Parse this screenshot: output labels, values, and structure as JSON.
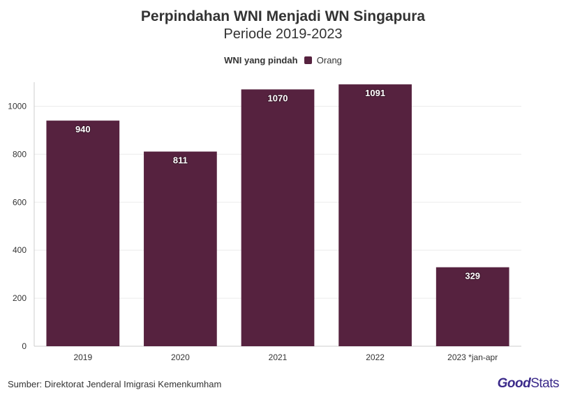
{
  "chart_data": {
    "type": "bar",
    "title": "Perpindahan WNI Menjadi WN Singapura",
    "subtitle": "Periode 2019-2023",
    "legend_title": "WNI yang pindah",
    "series": [
      {
        "name": "Orang",
        "color": "#56223f",
        "values": [
          940,
          811,
          1070,
          1091,
          329
        ]
      }
    ],
    "categories": [
      "2019",
      "2020",
      "2021",
      "2022",
      "2023 *jan-apr"
    ],
    "data_labels": [
      "940",
      "811",
      "1070",
      "1091",
      "329"
    ],
    "ylim": [
      0,
      1100
    ],
    "yticks": [
      0,
      200,
      400,
      600,
      800,
      1000
    ],
    "ytick_labels": [
      "0",
      "200",
      "400",
      "600",
      "800",
      "1000"
    ],
    "grid": true,
    "legend_position": "top-center"
  },
  "footer": {
    "source": "Sumber: Direktorat Jenderal Imigrasi Kemenkumham",
    "logo_good": "Good",
    "logo_stats": "Stats"
  }
}
